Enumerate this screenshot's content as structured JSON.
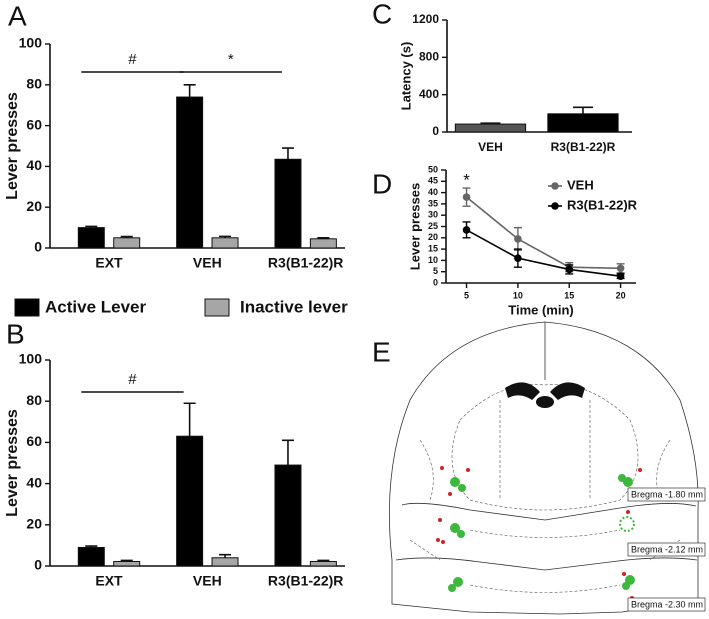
{
  "chart_data": [
    {
      "type": "bar",
      "panel_label": "A",
      "ylabel": "Lever presses",
      "categories": [
        "EXT",
        "VEH",
        "R3(B1-22)R"
      ],
      "series": [
        {
          "name": "Active Lever",
          "color": "#000000",
          "values": [
            10,
            74,
            43.5
          ],
          "errors": [
            0.6,
            6,
            5.5
          ]
        },
        {
          "name": "Inactive lever",
          "color": "#a6a6a6",
          "values": [
            5,
            5,
            4.5
          ],
          "errors": [
            0.6,
            0.7,
            0.5
          ]
        }
      ],
      "ylim": [
        0,
        100
      ],
      "yticks": [
        0,
        20,
        40,
        60,
        80,
        100
      ],
      "annotations": [
        "#",
        "*"
      ],
      "legend": "below"
    },
    {
      "type": "bar",
      "panel_label": "B",
      "ylabel": "Lever presses",
      "categories": [
        "EXT",
        "VEH",
        "R3(B1-22)R"
      ],
      "series": [
        {
          "color": "#000000",
          "values": [
            9,
            63,
            49
          ],
          "errors": [
            0.7,
            16,
            12
          ]
        },
        {
          "color": "#a6a6a6",
          "values": [
            2.2,
            4,
            2.2
          ],
          "errors": [
            0.5,
            1.5,
            0.5
          ]
        }
      ],
      "ylim": [
        0,
        100
      ],
      "yticks": [
        0,
        20,
        40,
        60,
        80,
        100
      ],
      "annotations": [
        "#"
      ]
    },
    {
      "type": "bar",
      "panel_label": "C",
      "ylabel": "Latency (s)",
      "categories": [
        "VEH",
        "R3(B1-22)R"
      ],
      "values": [
        85,
        195
      ],
      "errors": [
        10,
        70
      ],
      "colors": [
        "#555555",
        "#000000"
      ],
      "ylim": [
        0,
        1200
      ],
      "yticks": [
        0,
        400,
        800,
        1200
      ]
    },
    {
      "type": "line",
      "panel_label": "D",
      "xlabel": "Time (min)",
      "ylabel": "Lever presses",
      "x": [
        5,
        10,
        15,
        20
      ],
      "series": [
        {
          "name": "VEH",
          "color": "#666666",
          "values": [
            38,
            19.5,
            7,
            6.5
          ],
          "errors": [
            4,
            5,
            2,
            2
          ]
        },
        {
          "name": "R3(B1-22)R",
          "color": "#000000",
          "values": [
            23.5,
            11,
            6,
            3
          ],
          "errors": [
            3.5,
            4,
            2,
            1
          ]
        }
      ],
      "xlim": [
        3,
        21.5
      ],
      "xticks": [
        5,
        10,
        15,
        20
      ],
      "ylim": [
        0,
        50
      ],
      "yticks": [
        0,
        5,
        10,
        15,
        20,
        25,
        30,
        35,
        40,
        45,
        50
      ],
      "annotations": [
        "*"
      ]
    }
  ],
  "figure_e": {
    "panel_label": "E",
    "sections": [
      "Bregma -1.80 mm",
      "Bregma -2.12 mm",
      "Bregma -2.30 mm"
    ]
  }
}
